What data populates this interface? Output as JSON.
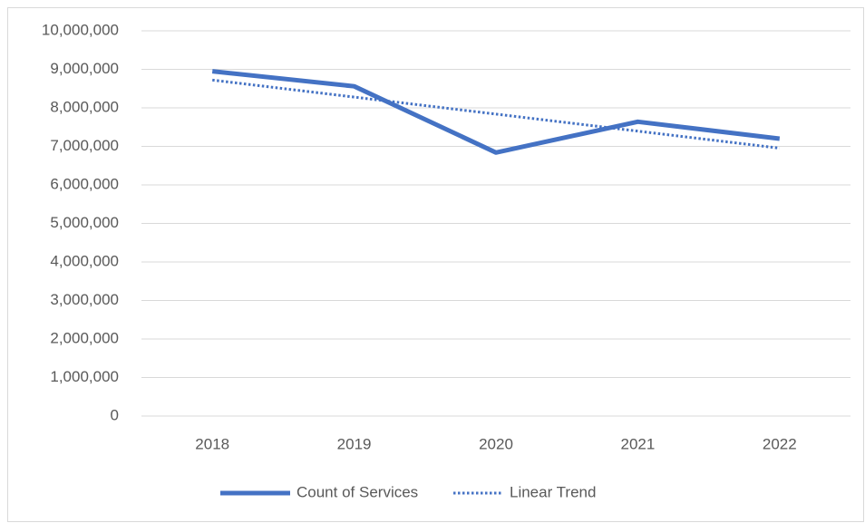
{
  "chart_data": {
    "type": "line",
    "categories": [
      "2018",
      "2019",
      "2020",
      "2021",
      "2022"
    ],
    "series": [
      {
        "name": "Count of Services",
        "color": "#4472c4",
        "style": "solid",
        "values": [
          8950000,
          8560000,
          6840000,
          7640000,
          7200000
        ]
      },
      {
        "name": "Linear Trend",
        "color": "#4472c4",
        "style": "dotted",
        "values": [
          8722000,
          8280000,
          7838000,
          7396000,
          6954000
        ]
      }
    ],
    "ylim": [
      0,
      10000000
    ],
    "yticks": [
      0,
      {
        "value": 1000000,
        "label": "1,000,000"
      },
      {
        "value": 2000000,
        "label": "2,000,000"
      },
      {
        "value": 3000000,
        "label": "3,000,000"
      },
      {
        "value": 4000000,
        "label": "4,000,000"
      },
      {
        "value": 5000000,
        "label": "5,000,000"
      },
      {
        "value": 6000000,
        "label": "6,000,000"
      },
      {
        "value": 7000000,
        "label": "7,000,000"
      },
      {
        "value": 8000000,
        "label": "8,000,000"
      },
      {
        "value": 9000000,
        "label": "9,000,000"
      },
      {
        "value": 10000000,
        "label": "10,000,000"
      }
    ],
    "grid": true,
    "legend": "bottom"
  }
}
